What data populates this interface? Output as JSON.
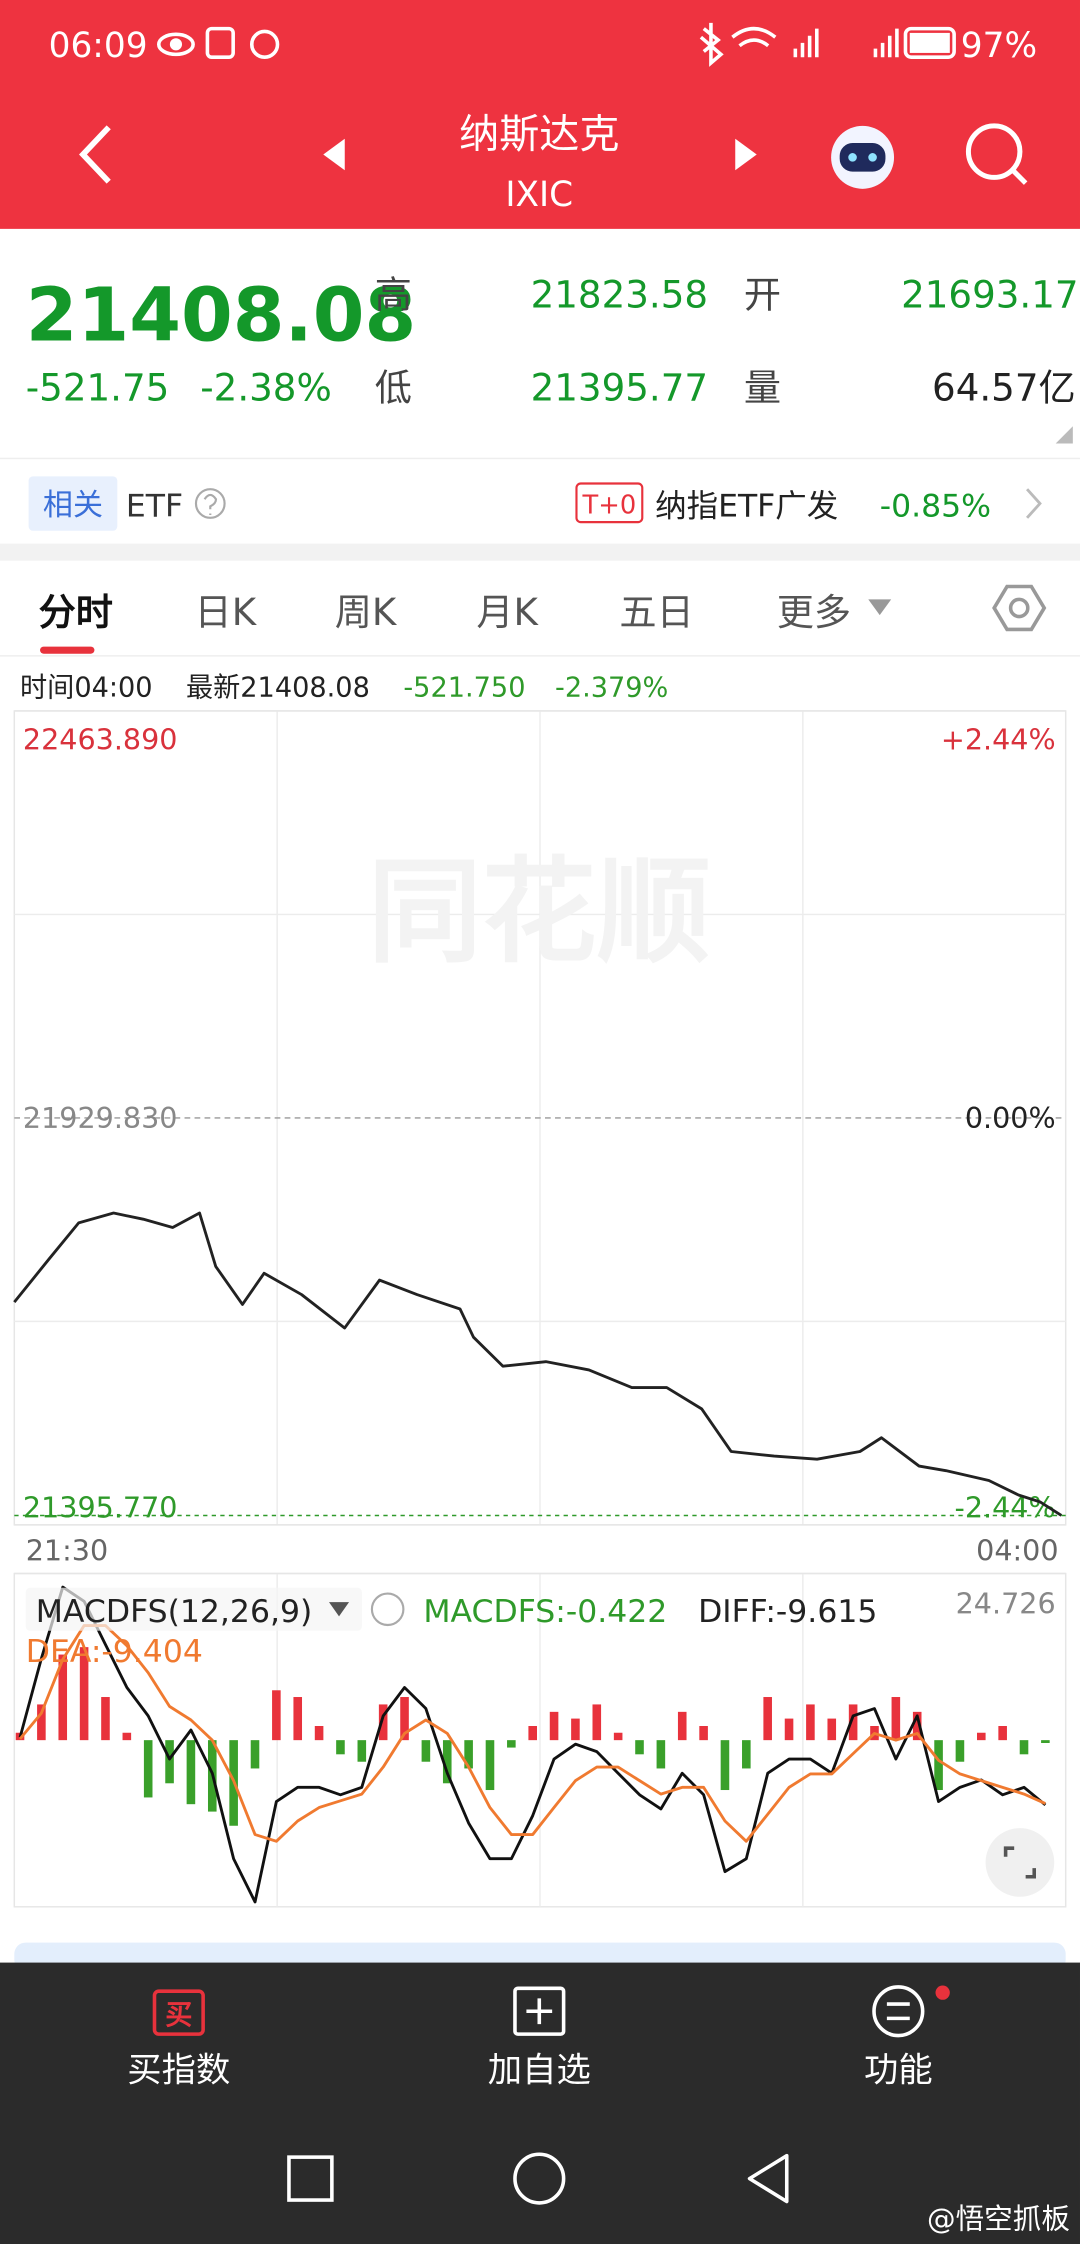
{
  "status_bar": {
    "time": "06:09",
    "battery": "97%"
  },
  "header": {
    "title": "纳斯达克",
    "subtitle": "IXIC"
  },
  "quote": {
    "price": "21408.08",
    "change": "-521.75",
    "change_pct": "-2.38%",
    "high_label": "高",
    "high": "21823.58",
    "low_label": "低",
    "low": "21395.77",
    "open_label": "开",
    "open": "21693.17",
    "volume_label": "量",
    "volume": "64.57亿"
  },
  "etf": {
    "badge": "相关",
    "label": "ETF",
    "tag": "T+0",
    "name": "纳指ETF广发",
    "change": "-0.85%"
  },
  "tabs": [
    "分时",
    "日K",
    "周K",
    "月K",
    "五日",
    "更多"
  ],
  "info": {
    "time": "时间04:00",
    "latest": "最新21408.08",
    "change": "-521.750",
    "change_pct": "-2.379%"
  },
  "chart_data": [
    {
      "type": "line",
      "watermark": "同花顺",
      "xlim": [
        0,
        390
      ],
      "xticks": [
        {
          "value": 0,
          "label": "21:30"
        },
        {
          "value": 390,
          "label": "04:00"
        }
      ],
      "ylim": [
        21395.77,
        22463.89
      ],
      "yticks": [
        {
          "value": 22463.89,
          "label": "22463.890"
        },
        {
          "value": 21929.83,
          "label": "21929.830"
        },
        {
          "value": 21395.77,
          "label": "21395.770"
        }
      ],
      "y2lim": [
        -2.44,
        2.44
      ],
      "y2ticks": [
        {
          "value": 2.44,
          "label": "+2.44%"
        },
        {
          "value": 0,
          "label": "0.00%"
        },
        {
          "value": -2.44,
          "label": "-2.44%"
        }
      ],
      "x": [
        0,
        13,
        24,
        37,
        48,
        59,
        69,
        75,
        85,
        93,
        107,
        123,
        136,
        150,
        166,
        171,
        182,
        198,
        214,
        230,
        243,
        256,
        267,
        283,
        299,
        315,
        323,
        337,
        347,
        363,
        374,
        382,
        390
      ],
      "series": [
        {
          "color": "#222222",
          "values": [
            21688,
            21745,
            21792,
            21805,
            21797,
            21786,
            21805,
            21735,
            21685,
            21726,
            21698,
            21654,
            21717,
            21698,
            21679,
            21642,
            21604,
            21610,
            21599,
            21576,
            21576,
            21548,
            21492,
            21486,
            21482,
            21492,
            21510,
            21473,
            21467,
            21454,
            21435,
            21426,
            21408.08
          ]
        }
      ]
    },
    {
      "type": "macd",
      "indicator": "MACDFS(12,26,9)",
      "legend": [
        {
          "text": "MACDFS:-0.422",
          "color": "#2f9a2a"
        },
        {
          "text": "DIFF:-9.615",
          "color": "#222222"
        },
        {
          "text": "DEA:-9.404",
          "color": "#f07a30"
        }
      ],
      "xlim": [
        0,
        390
      ],
      "ylim": [
        -24.726,
        24.726
      ],
      "yticks": [
        24.726
      ],
      "x": [
        0,
        8,
        16,
        24,
        32,
        40,
        48,
        56,
        64,
        72,
        80,
        88,
        96,
        104,
        112,
        120,
        128,
        136,
        144,
        152,
        160,
        168,
        176,
        184,
        192,
        200,
        208,
        216,
        224,
        232,
        240,
        248,
        256,
        264,
        272,
        280,
        288,
        296,
        304,
        312,
        320,
        328,
        336,
        344,
        352,
        360,
        368,
        376,
        384
      ],
      "series": [
        {
          "type": "bar",
          "color_up": "#e8323c",
          "color_down": "#3aa02a",
          "values": [
            1.1,
            5.3,
            12.7,
            13.8,
            6.4,
            1.1,
            -8.5,
            -6.4,
            -9.5,
            -10.6,
            -12.7,
            -4.2,
            7.4,
            6.4,
            2.1,
            -2.1,
            -3.2,
            5.3,
            6.4,
            -3.2,
            -6.4,
            -4.2,
            -7.4,
            -1.1,
            2.1,
            4.2,
            3.2,
            5.3,
            1.1,
            -2.1,
            -4.2,
            4.2,
            2.1,
            -7.4,
            -4.2,
            6.4,
            3.2,
            5.3,
            3.2,
            5.3,
            2.1,
            6.4,
            4.2,
            -7.4,
            -3.2,
            1.1,
            2.1,
            -2.1,
            -0.422
          ]
        },
        {
          "type": "line",
          "color": "#111111",
          "values": [
            0.4,
            12.1,
            22.7,
            20.6,
            14.2,
            7.8,
            3.6,
            -2.8,
            1.5,
            -4.9,
            -17.6,
            -24,
            -9.1,
            -7,
            -7,
            -8.1,
            -7,
            3.6,
            7.8,
            4.7,
            -4.9,
            -12.3,
            -17.6,
            -17.6,
            -11.2,
            -2.8,
            -0.6,
            -1.7,
            -4.9,
            -8.1,
            -10.2,
            -4.9,
            -8.1,
            -19.5,
            -17.6,
            -4.9,
            -2.8,
            -2.8,
            -4.9,
            3.6,
            4.7,
            -2.8,
            3.6,
            -9.1,
            -7,
            -5.9,
            -8.1,
            -7,
            -9.615
          ]
        },
        {
          "type": "line",
          "color": "#f07a30",
          "values": [
            0.2,
            4,
            12,
            17,
            17,
            14,
            10,
            5,
            3,
            0,
            -6,
            -14,
            -15,
            -12,
            -10,
            -9,
            -8,
            -4,
            1,
            3,
            1,
            -4,
            -10,
            -14,
            -14,
            -10,
            -6,
            -4,
            -4,
            -6,
            -8,
            -7,
            -7,
            -12,
            -15,
            -11,
            -7,
            -5,
            -5,
            -2,
            1,
            0,
            1,
            -3,
            -5,
            -6,
            -7,
            -8,
            -9.404
          ]
        }
      ]
    }
  ],
  "bottom_nav": {
    "buy_icon": "买",
    "items": [
      "买指数",
      "加自选",
      "功能"
    ]
  },
  "watermark": "@悟空抓板"
}
